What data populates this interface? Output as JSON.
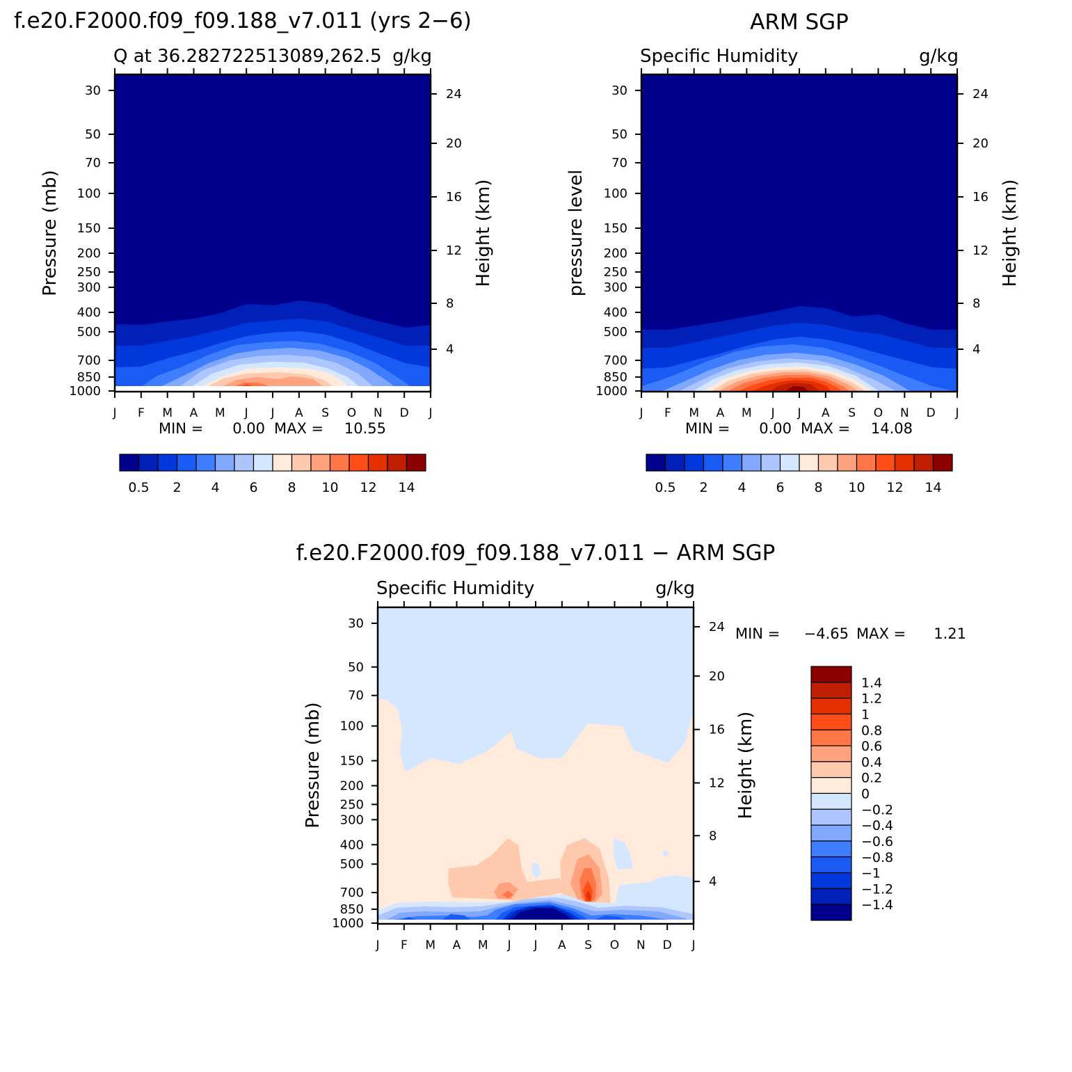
{
  "colors": {
    "seq": [
      "#00008c",
      "#0020b8",
      "#0038dc",
      "#1a5af5",
      "#3f7dff",
      "#80a8ff",
      "#adc6ff",
      "#d5e7ff",
      "#ffeadb",
      "#ffc9ad",
      "#ffa27d",
      "#ff7748",
      "#ff4d18",
      "#e43000",
      "#bf1f00",
      "#8c0000"
    ],
    "frame": "#000000"
  },
  "chart_data": [
    {
      "type": "heatmap",
      "title": "f.e20.F2000.f09_f09.188_v7.011 (yrs 2−6)",
      "subtitle_left": "Q at 36.282722513089,262.5",
      "subtitle_right": "g/kg",
      "ylabel": "Pressure (mb)",
      "ylabel_right": "Height (km)",
      "x_ticks": [
        "J",
        "F",
        "M",
        "A",
        "M",
        "J",
        "J",
        "A",
        "S",
        "O",
        "N",
        "D",
        "J"
      ],
      "y_ticks": [
        "30",
        "50",
        "70",
        "100",
        "150",
        "200",
        "250",
        "300",
        "400",
        "500",
        "700",
        "850",
        "1000"
      ],
      "y_ticks_right": [
        "24",
        "20",
        "16",
        "12",
        "8",
        "4"
      ],
      "min_label": "MIN =",
      "min_value": "0.00",
      "max_label": "MAX =",
      "max_value": "10.55",
      "colorbar_labels": [
        "0.5",
        "2",
        "4",
        "6",
        "8",
        "10",
        "12",
        "14"
      ],
      "monthly_surface_peak": [
        2.5,
        3.2,
        4.0,
        5.4,
        7.6,
        9.8,
        10.5,
        10.3,
        9.0,
        6.4,
        4.2,
        3.0,
        2.5
      ]
    },
    {
      "type": "heatmap",
      "title": "ARM SGP",
      "subtitle_left": "Specific Humidity",
      "subtitle_right": "g/kg",
      "ylabel": "pressure level",
      "ylabel_right": "Height (km)",
      "x_ticks": [
        "J",
        "F",
        "M",
        "A",
        "M",
        "J",
        "J",
        "A",
        "S",
        "O",
        "N",
        "D",
        "J"
      ],
      "y_ticks": [
        "30",
        "50",
        "70",
        "100",
        "150",
        "200",
        "250",
        "300",
        "400",
        "500",
        "700",
        "850",
        "1000"
      ],
      "y_ticks_right": [
        "24",
        "20",
        "16",
        "12",
        "8",
        "4"
      ],
      "min_label": "MIN =",
      "min_value": "0.00",
      "max_label": "MAX =",
      "max_value": "14.08",
      "colorbar_labels": [
        "0.5",
        "2",
        "4",
        "6",
        "8",
        "10",
        "12",
        "14"
      ],
      "monthly_surface_peak": [
        3.0,
        3.6,
        4.6,
        6.6,
        9.4,
        12.6,
        14.0,
        13.2,
        10.8,
        7.6,
        4.6,
        3.3,
        3.0
      ]
    },
    {
      "type": "heatmap",
      "title": "f.e20.F2000.f09_f09.188_v7.011 − ARM SGP",
      "subtitle_left": "Specific Humidity",
      "subtitle_right": "g/kg",
      "ylabel": "Pressure (mb)",
      "ylabel_right": "Height (km)",
      "x_ticks": [
        "J",
        "F",
        "M",
        "A",
        "M",
        "J",
        "J",
        "A",
        "S",
        "O",
        "N",
        "D",
        "J"
      ],
      "y_ticks": [
        "30",
        "50",
        "70",
        "100",
        "150",
        "200",
        "250",
        "300",
        "400",
        "500",
        "700",
        "850",
        "1000"
      ],
      "y_ticks_right": [
        "24",
        "20",
        "16",
        "12",
        "8",
        "4"
      ],
      "min_label": "MIN =",
      "min_value": "−4.65",
      "max_label": "MAX =",
      "max_value": "1.21",
      "colorbar_labels": [
        "1.4",
        "1.2",
        "1",
        "0.8",
        "0.6",
        "0.4",
        "0.2",
        "0",
        "−0.2",
        "−0.4",
        "−0.6",
        "−0.8",
        "−1",
        "−1.2",
        "−1.4"
      ]
    }
  ]
}
